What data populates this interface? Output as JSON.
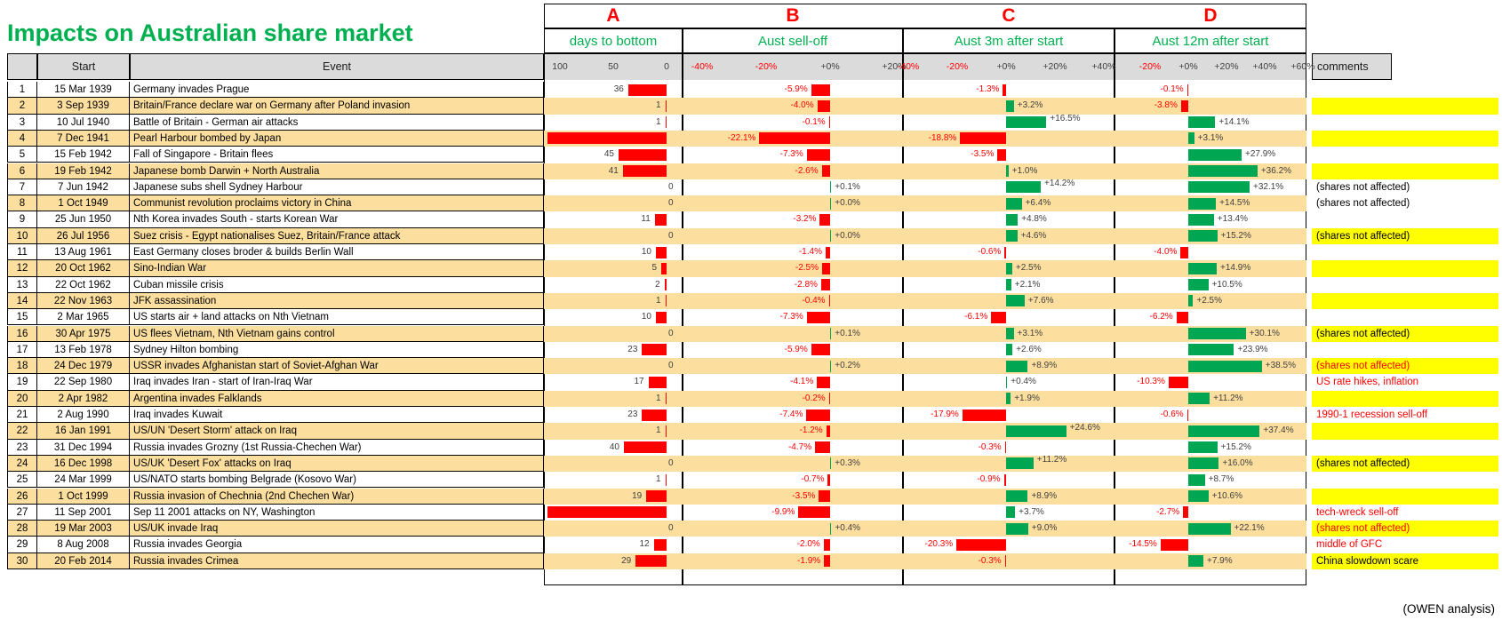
{
  "title": "Impacts on Australian share market",
  "row_headers": {
    "start": "Start",
    "event": "Event",
    "comments": "comments"
  },
  "footer": "(OWEN analysis)",
  "colors": {
    "green": "#00B050",
    "bar_green": "#00A651",
    "red": "#FF0000",
    "tan": "#FCDF9E",
    "yellow": "#FFFF00",
    "gray": "#DBDBDB",
    "label_dark": "#404040"
  },
  "columns": {
    "a": {
      "letter": "A",
      "title": "days to bottom",
      "ticks": [
        {
          "t": "100",
          "v": 100
        },
        {
          "t": "50",
          "v": 50
        },
        {
          "t": "0",
          "v": 0
        }
      ]
    },
    "b": {
      "letter": "B",
      "title": "Aust sell-off",
      "ticks": [
        {
          "t": "-40%",
          "v": -40
        },
        {
          "t": "-20%",
          "v": -20
        },
        {
          "t": "+0%",
          "v": 0
        },
        {
          "t": "+20%",
          "v": 20
        }
      ]
    },
    "c": {
      "letter": "C",
      "title": "Aust 3m after start",
      "ticks": [
        {
          "t": "-40%",
          "v": -40
        },
        {
          "t": "-20%",
          "v": -20
        },
        {
          "t": "+0%",
          "v": 0
        },
        {
          "t": "+20%",
          "v": 20
        },
        {
          "t": "+40%",
          "v": 40
        }
      ]
    },
    "d": {
      "letter": "D",
      "title": "Aust 12m after start",
      "ticks": [
        {
          "t": "-20%",
          "v": -20
        },
        {
          "t": "+0%",
          "v": 0
        },
        {
          "t": "+20%",
          "v": 20
        },
        {
          "t": "+40%",
          "v": 40
        },
        {
          "t": "+60%",
          "v": 60
        }
      ]
    }
  },
  "chart_data": {
    "type": "bar",
    "title": "Impacts on Australian share market",
    "row_numbers": [
      1,
      2,
      3,
      4,
      5,
      6,
      7,
      8,
      9,
      10,
      11,
      12,
      13,
      14,
      15,
      16,
      17,
      18,
      19,
      20,
      21,
      22,
      23,
      24,
      25,
      26,
      27,
      28,
      29,
      30
    ],
    "dates": [
      "15 Mar 1939",
      "3 Sep 1939",
      "10 Jul 1940",
      "7 Dec 1941",
      "15 Feb 1942",
      "19 Feb 1942",
      "7 Jun 1942",
      "1 Oct 1949",
      "25 Jun 1950",
      "26 Jul 1956",
      "13 Aug 1961",
      "20 Oct 1962",
      "22 Oct 1962",
      "22 Nov 1963",
      "2 Mar 1965",
      "30 Apr 1975",
      "13 Feb 1978",
      "24 Dec 1979",
      "22 Sep 1980",
      "2 Apr 1982",
      "2 Aug 1990",
      "16 Jan 1991",
      "31 Dec 1994",
      "16 Dec 1998",
      "24 Mar 1999",
      "1 Oct 1999",
      "11 Sep 2001",
      "19 Mar 2003",
      "8 Aug 2008",
      "20 Feb 2014"
    ],
    "categories": [
      "Germany invades Prague",
      "Britain/France declare war on Germany after Poland invasion",
      "Battle of Britain - German air attacks",
      "Pearl Harbour bombed by Japan",
      "Fall of Singapore - Britain flees",
      "Japanese bomb Darwin + North Australia",
      "Japanese subs shell Sydney Harbour",
      "Communist revolution proclaims victory in China",
      "Nth Korea invades South - starts Korean War",
      "Suez crisis - Egypt nationalises Suez, Britain/France attack",
      "East Germany closes broder & builds Berlin Wall",
      "Sino-Indian War",
      "Cuban missile crisis",
      "JFK assassination",
      "US starts air + land attacks on Nth Vietnam",
      "US flees Vietnam, Nth Vietnam gains control",
      "Sydney Hilton bombing",
      "USSR invades Afghanistan start of Soviet-Afghan War",
      "Iraq invades Iran - start of Iran-Iraq War",
      "Argentina invades Falklands",
      "Iraq invades Kuwait",
      "US/UN 'Desert Storm' attack on Iraq",
      "Russia invades Grozny (1st Russia-Chechen War)",
      "US/UK 'Desert Fox' attacks on Iraq",
      "US/NATO starts bombing Belgrade (Kosovo War)",
      "Russia invasion of Chechnia (2nd Chechen War)",
      "Sep 11 2001 attacks on NY, Washington",
      "US/UK invade Iraq",
      "Russia invades Georgia",
      "Russia invades Crimea"
    ],
    "series": [
      {
        "id": "a",
        "name": "days to bottom",
        "unit": "days",
        "values": [
          36,
          1,
          1,
          null,
          45,
          41,
          0,
          0,
          11,
          0,
          10,
          5,
          2,
          1,
          10,
          0,
          23,
          0,
          17,
          1,
          23,
          1,
          40,
          0,
          1,
          19,
          null,
          0,
          12,
          29
        ]
      },
      {
        "id": "b",
        "name": "Aust sell-off",
        "unit": "%",
        "values": [
          -5.9,
          -4.0,
          -0.1,
          -22.1,
          -7.3,
          -2.6,
          0.1,
          0.0,
          -3.2,
          0.0,
          -1.4,
          -2.5,
          -2.8,
          -0.4,
          -7.3,
          0.1,
          -5.9,
          0.2,
          -4.1,
          -0.2,
          -7.4,
          -1.2,
          -4.7,
          0.3,
          -0.7,
          -3.5,
          -9.9,
          0.4,
          -2.0,
          -1.9
        ]
      },
      {
        "id": "c",
        "name": "Aust 3m after start",
        "unit": "%",
        "values": [
          -1.3,
          3.2,
          16.5,
          -18.8,
          -3.5,
          1.0,
          14.2,
          6.4,
          4.8,
          4.6,
          -0.6,
          2.5,
          2.1,
          7.6,
          -6.1,
          3.1,
          2.6,
          8.9,
          0.4,
          1.9,
          -17.9,
          24.6,
          -0.3,
          11.2,
          -0.9,
          8.9,
          3.7,
          9.0,
          -20.3,
          -0.3
        ]
      },
      {
        "id": "d",
        "name": "Aust 12m after start",
        "unit": "%",
        "values": [
          -0.1,
          -3.8,
          14.1,
          3.1,
          27.9,
          36.2,
          32.1,
          14.5,
          13.4,
          15.2,
          -4.0,
          14.9,
          10.5,
          2.5,
          -6.2,
          30.1,
          23.9,
          38.5,
          -10.3,
          11.2,
          -0.6,
          37.4,
          15.2,
          16.0,
          8.7,
          10.6,
          -2.7,
          22.1,
          -14.5,
          7.9
        ]
      }
    ],
    "a_full_bar_rows": [
      4,
      27
    ],
    "c_wrapped_label_rows": [
      3,
      7,
      22,
      24
    ],
    "axis_ranges": {
      "a": [
        115,
        0
      ],
      "b": [
        -45,
        25
      ],
      "c": [
        -45,
        45
      ],
      "d": [
        -25,
        62
      ]
    },
    "comments": {
      "by_row": {
        "7": "(shares not affected)",
        "8": "(shares not affected)",
        "10": "(shares not affected)",
        "16": "(shares not affected)",
        "18": "(shares not affected)",
        "19": "US rate hikes, inflation",
        "21": "1990-1 recession sell-off",
        "24": "(shares not affected)",
        "27": "tech-wreck sell-off",
        "28": "(shares not affected)",
        "29": "middle of GFC",
        "30": "China slowdown scare"
      },
      "red_text_rows": [
        18,
        19,
        21,
        27,
        28,
        29
      ],
      "yellow_bg_rows": [
        2,
        4,
        6,
        10,
        12,
        14,
        16,
        18,
        20,
        22,
        24,
        26,
        28,
        30
      ]
    }
  }
}
